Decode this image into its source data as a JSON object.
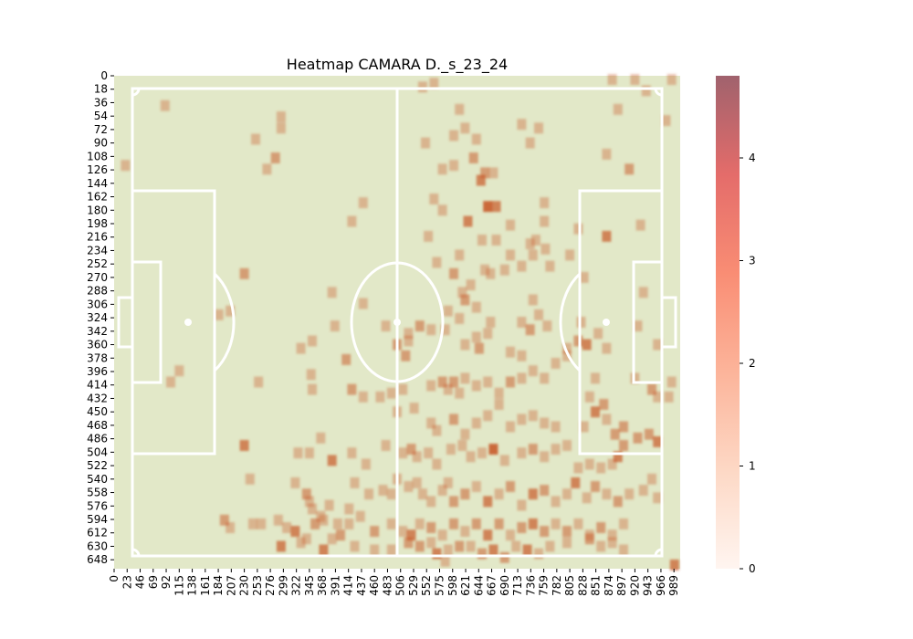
{
  "chart_data": {
    "type": "heatmap",
    "title": "Heatmap CAMARA D._s_23_24",
    "x_ticks": [
      0,
      23,
      46,
      69,
      92,
      115,
      138,
      161,
      184,
      207,
      230,
      253,
      276,
      299,
      322,
      345,
      368,
      391,
      414,
      437,
      460,
      483,
      506,
      529,
      552,
      575,
      598,
      621,
      644,
      667,
      690,
      713,
      736,
      759,
      782,
      805,
      828,
      851,
      874,
      897,
      920,
      943,
      966,
      989
    ],
    "y_ticks": [
      0,
      18,
      36,
      54,
      72,
      90,
      108,
      126,
      144,
      162,
      180,
      198,
      216,
      234,
      252,
      270,
      288,
      306,
      324,
      342,
      360,
      378,
      396,
      414,
      432,
      450,
      468,
      486,
      504,
      522,
      540,
      558,
      576,
      594,
      612,
      630,
      648
    ],
    "xlim": [
      0,
      1000
    ],
    "ylim": [
      0,
      660
    ],
    "colorbar": {
      "ticks": [
        0,
        1,
        2,
        3,
        4
      ],
      "range": [
        0,
        4.8
      ],
      "colors": [
        "#fff5f0",
        "#fdd2bf",
        "#fca486",
        "#e87068",
        "#a0606a"
      ]
    },
    "pitch_color": "#e2e8c8",
    "line_color": "#ffffff",
    "cell_color": "#c85a2a",
    "cells": [
      [
        545,
        15,
        1
      ],
      [
        565,
        10,
        1
      ],
      [
        880,
        5,
        1
      ],
      [
        920,
        5,
        1
      ],
      [
        985,
        5,
        1
      ],
      [
        940,
        20,
        1
      ],
      [
        90,
        40,
        1
      ],
      [
        295,
        55,
        1
      ],
      [
        295,
        70,
        1
      ],
      [
        250,
        85,
        1
      ],
      [
        285,
        110,
        2
      ],
      [
        270,
        125,
        1
      ],
      [
        20,
        120,
        1
      ],
      [
        610,
        45,
        1
      ],
      [
        620,
        70,
        1
      ],
      [
        600,
        80,
        1
      ],
      [
        550,
        90,
        1
      ],
      [
        640,
        85,
        1
      ],
      [
        600,
        120,
        1
      ],
      [
        635,
        110,
        2
      ],
      [
        655,
        130,
        2
      ],
      [
        648,
        140,
        3
      ],
      [
        670,
        130,
        1
      ],
      [
        720,
        65,
        1
      ],
      [
        735,
        90,
        1
      ],
      [
        750,
        70,
        1
      ],
      [
        890,
        45,
        1
      ],
      [
        870,
        105,
        1
      ],
      [
        910,
        125,
        2
      ],
      [
        975,
        60,
        1
      ],
      [
        440,
        170,
        1
      ],
      [
        580,
        125,
        1
      ],
      [
        565,
        165,
        1
      ],
      [
        580,
        180,
        1
      ],
      [
        625,
        195,
        3
      ],
      [
        660,
        175,
        4
      ],
      [
        675,
        175,
        3
      ],
      [
        760,
        170,
        1
      ],
      [
        760,
        195,
        1
      ],
      [
        700,
        200,
        1
      ],
      [
        745,
        220,
        1
      ],
      [
        735,
        225,
        1
      ],
      [
        762,
        232,
        1
      ],
      [
        820,
        205,
        1
      ],
      [
        870,
        215,
        3
      ],
      [
        930,
        200,
        1
      ],
      [
        420,
        195,
        1
      ],
      [
        555,
        215,
        1
      ],
      [
        610,
        240,
        1
      ],
      [
        650,
        220,
        1
      ],
      [
        675,
        220,
        1
      ],
      [
        700,
        240,
        1
      ],
      [
        740,
        240,
        1
      ],
      [
        770,
        255,
        1
      ],
      [
        805,
        240,
        1
      ],
      [
        600,
        265,
        2
      ],
      [
        630,
        280,
        1
      ],
      [
        655,
        260,
        1
      ],
      [
        665,
        265,
        1
      ],
      [
        690,
        260,
        1
      ],
      [
        720,
        255,
        1
      ],
      [
        230,
        265,
        2
      ],
      [
        570,
        250,
        1
      ],
      [
        620,
        300,
        2
      ],
      [
        615,
        290,
        1
      ],
      [
        640,
        310,
        1
      ],
      [
        610,
        325,
        1
      ],
      [
        665,
        330,
        1
      ],
      [
        740,
        300,
        1
      ],
      [
        720,
        330,
        1
      ],
      [
        735,
        340,
        2
      ],
      [
        750,
        320,
        1
      ],
      [
        765,
        335,
        1
      ],
      [
        825,
        330,
        1
      ],
      [
        830,
        270,
        1
      ],
      [
        935,
        290,
        1
      ],
      [
        925,
        335,
        1
      ],
      [
        385,
        290,
        1
      ],
      [
        390,
        335,
        1
      ],
      [
        440,
        305,
        1
      ],
      [
        480,
        335,
        1
      ],
      [
        520,
        345,
        1
      ],
      [
        540,
        335,
        2
      ],
      [
        560,
        340,
        1
      ],
      [
        590,
        315,
        1
      ],
      [
        585,
        340,
        1
      ],
      [
        205,
        315,
        1
      ],
      [
        185,
        320,
        1
      ],
      [
        350,
        355,
        1
      ],
      [
        330,
        365,
        1
      ],
      [
        410,
        380,
        2
      ],
      [
        500,
        360,
        2
      ],
      [
        520,
        355,
        1
      ],
      [
        515,
        375,
        2
      ],
      [
        620,
        360,
        1
      ],
      [
        640,
        350,
        1
      ],
      [
        645,
        365,
        2
      ],
      [
        660,
        345,
        1
      ],
      [
        700,
        370,
        1
      ],
      [
        720,
        375,
        1
      ],
      [
        800,
        365,
        1
      ],
      [
        820,
        355,
        2
      ],
      [
        835,
        360,
        3
      ],
      [
        855,
        345,
        1
      ],
      [
        870,
        365,
        1
      ],
      [
        960,
        360,
        1
      ],
      [
        115,
        395,
        1
      ],
      [
        100,
        410,
        1
      ],
      [
        255,
        410,
        1
      ],
      [
        348,
        400,
        1
      ],
      [
        350,
        420,
        1
      ],
      [
        420,
        420,
        2
      ],
      [
        440,
        430,
        1
      ],
      [
        470,
        430,
        1
      ],
      [
        490,
        425,
        1
      ],
      [
        510,
        420,
        1
      ],
      [
        560,
        415,
        1
      ],
      [
        580,
        410,
        2
      ],
      [
        590,
        420,
        1
      ],
      [
        600,
        410,
        2
      ],
      [
        610,
        425,
        1
      ],
      [
        620,
        405,
        1
      ],
      [
        640,
        415,
        1
      ],
      [
        660,
        410,
        1
      ],
      [
        680,
        425,
        1
      ],
      [
        700,
        410,
        2
      ],
      [
        720,
        405,
        1
      ],
      [
        740,
        395,
        1
      ],
      [
        760,
        405,
        1
      ],
      [
        780,
        385,
        1
      ],
      [
        800,
        375,
        1
      ],
      [
        840,
        430,
        1
      ],
      [
        850,
        405,
        1
      ],
      [
        920,
        405,
        1
      ],
      [
        950,
        420,
        2
      ],
      [
        960,
        430,
        1
      ],
      [
        980,
        430,
        1
      ],
      [
        985,
        410,
        1
      ],
      [
        500,
        450,
        1
      ],
      [
        530,
        445,
        1
      ],
      [
        560,
        465,
        1
      ],
      [
        570,
        475,
        1
      ],
      [
        600,
        460,
        2
      ],
      [
        620,
        480,
        1
      ],
      [
        640,
        465,
        1
      ],
      [
        660,
        455,
        1
      ],
      [
        680,
        440,
        1
      ],
      [
        700,
        470,
        1
      ],
      [
        720,
        460,
        1
      ],
      [
        740,
        455,
        1
      ],
      [
        760,
        465,
        1
      ],
      [
        780,
        470,
        1
      ],
      [
        830,
        470,
        1
      ],
      [
        850,
        450,
        3
      ],
      [
        865,
        440,
        2
      ],
      [
        870,
        460,
        1
      ],
      [
        885,
        480,
        2
      ],
      [
        900,
        470,
        2
      ],
      [
        925,
        485,
        2
      ],
      [
        945,
        480,
        2
      ],
      [
        960,
        490,
        3
      ],
      [
        230,
        495,
        3
      ],
      [
        325,
        505,
        1
      ],
      [
        345,
        505,
        1
      ],
      [
        365,
        485,
        1
      ],
      [
        385,
        515,
        3
      ],
      [
        420,
        505,
        1
      ],
      [
        445,
        520,
        1
      ],
      [
        480,
        495,
        1
      ],
      [
        510,
        505,
        1
      ],
      [
        525,
        500,
        2
      ],
      [
        535,
        510,
        1
      ],
      [
        555,
        505,
        1
      ],
      [
        570,
        520,
        1
      ],
      [
        595,
        500,
        1
      ],
      [
        615,
        495,
        1
      ],
      [
        630,
        510,
        1
      ],
      [
        650,
        505,
        1
      ],
      [
        670,
        500,
        4
      ],
      [
        690,
        515,
        1
      ],
      [
        720,
        505,
        1
      ],
      [
        740,
        500,
        2
      ],
      [
        760,
        510,
        1
      ],
      [
        780,
        500,
        1
      ],
      [
        800,
        495,
        1
      ],
      [
        820,
        525,
        1
      ],
      [
        840,
        520,
        1
      ],
      [
        860,
        525,
        1
      ],
      [
        880,
        520,
        1
      ],
      [
        890,
        510,
        3
      ],
      [
        900,
        495,
        2
      ],
      [
        240,
        540,
        1
      ],
      [
        320,
        545,
        1
      ],
      [
        340,
        560,
        2
      ],
      [
        345,
        570,
        1
      ],
      [
        350,
        580,
        1
      ],
      [
        365,
        590,
        1
      ],
      [
        380,
        575,
        1
      ],
      [
        395,
        600,
        1
      ],
      [
        415,
        580,
        1
      ],
      [
        425,
        545,
        1
      ],
      [
        450,
        560,
        1
      ],
      [
        475,
        555,
        1
      ],
      [
        490,
        560,
        1
      ],
      [
        500,
        540,
        1
      ],
      [
        520,
        550,
        1
      ],
      [
        535,
        545,
        1
      ],
      [
        545,
        560,
        1
      ],
      [
        560,
        570,
        1
      ],
      [
        580,
        555,
        1
      ],
      [
        590,
        545,
        1
      ],
      [
        600,
        570,
        2
      ],
      [
        620,
        560,
        2
      ],
      [
        640,
        550,
        1
      ],
      [
        660,
        570,
        3
      ],
      [
        680,
        560,
        1
      ],
      [
        700,
        550,
        2
      ],
      [
        720,
        575,
        1
      ],
      [
        740,
        560,
        3
      ],
      [
        760,
        555,
        2
      ],
      [
        780,
        570,
        1
      ],
      [
        800,
        560,
        1
      ],
      [
        815,
        545,
        3
      ],
      [
        835,
        565,
        1
      ],
      [
        850,
        550,
        2
      ],
      [
        870,
        560,
        1
      ],
      [
        890,
        570,
        2
      ],
      [
        910,
        560,
        1
      ],
      [
        935,
        555,
        1
      ],
      [
        950,
        540,
        1
      ],
      [
        960,
        565,
        1
      ],
      [
        195,
        595,
        2
      ],
      [
        205,
        605,
        1
      ],
      [
        245,
        600,
        1
      ],
      [
        260,
        600,
        1
      ],
      [
        290,
        595,
        1
      ],
      [
        305,
        605,
        1
      ],
      [
        320,
        610,
        3
      ],
      [
        340,
        620,
        1
      ],
      [
        355,
        600,
        2
      ],
      [
        370,
        595,
        1
      ],
      [
        385,
        620,
        1
      ],
      [
        400,
        615,
        2
      ],
      [
        415,
        600,
        1
      ],
      [
        435,
        590,
        1
      ],
      [
        460,
        610,
        2
      ],
      [
        490,
        600,
        1
      ],
      [
        510,
        610,
        1
      ],
      [
        525,
        615,
        3
      ],
      [
        540,
        600,
        1
      ],
      [
        560,
        605,
        2
      ],
      [
        580,
        615,
        1
      ],
      [
        600,
        600,
        2
      ],
      [
        620,
        610,
        1
      ],
      [
        640,
        600,
        2
      ],
      [
        660,
        615,
        3
      ],
      [
        680,
        600,
        2
      ],
      [
        700,
        615,
        1
      ],
      [
        720,
        605,
        2
      ],
      [
        740,
        600,
        3
      ],
      [
        760,
        610,
        2
      ],
      [
        780,
        600,
        1
      ],
      [
        800,
        610,
        2
      ],
      [
        820,
        600,
        1
      ],
      [
        840,
        615,
        1
      ],
      [
        860,
        605,
        2
      ],
      [
        880,
        615,
        1
      ],
      [
        900,
        600,
        1
      ],
      [
        295,
        630,
        3
      ],
      [
        330,
        625,
        1
      ],
      [
        370,
        635,
        3
      ],
      [
        425,
        630,
        1
      ],
      [
        460,
        635,
        1
      ],
      [
        490,
        635,
        1
      ],
      [
        520,
        625,
        2
      ],
      [
        540,
        630,
        2
      ],
      [
        560,
        625,
        1
      ],
      [
        570,
        640,
        3
      ],
      [
        590,
        635,
        1
      ],
      [
        610,
        630,
        2
      ],
      [
        630,
        630,
        1
      ],
      [
        650,
        640,
        2
      ],
      [
        670,
        635,
        3
      ],
      [
        690,
        645,
        2
      ],
      [
        710,
        630,
        1
      ],
      [
        730,
        635,
        3
      ],
      [
        750,
        640,
        1
      ],
      [
        770,
        630,
        1
      ],
      [
        800,
        625,
        1
      ],
      [
        840,
        620,
        2
      ],
      [
        860,
        630,
        1
      ],
      [
        880,
        625,
        1
      ],
      [
        900,
        635,
        1
      ],
      [
        990,
        655,
        3
      ],
      [
        585,
        650,
        1
      ]
    ]
  }
}
